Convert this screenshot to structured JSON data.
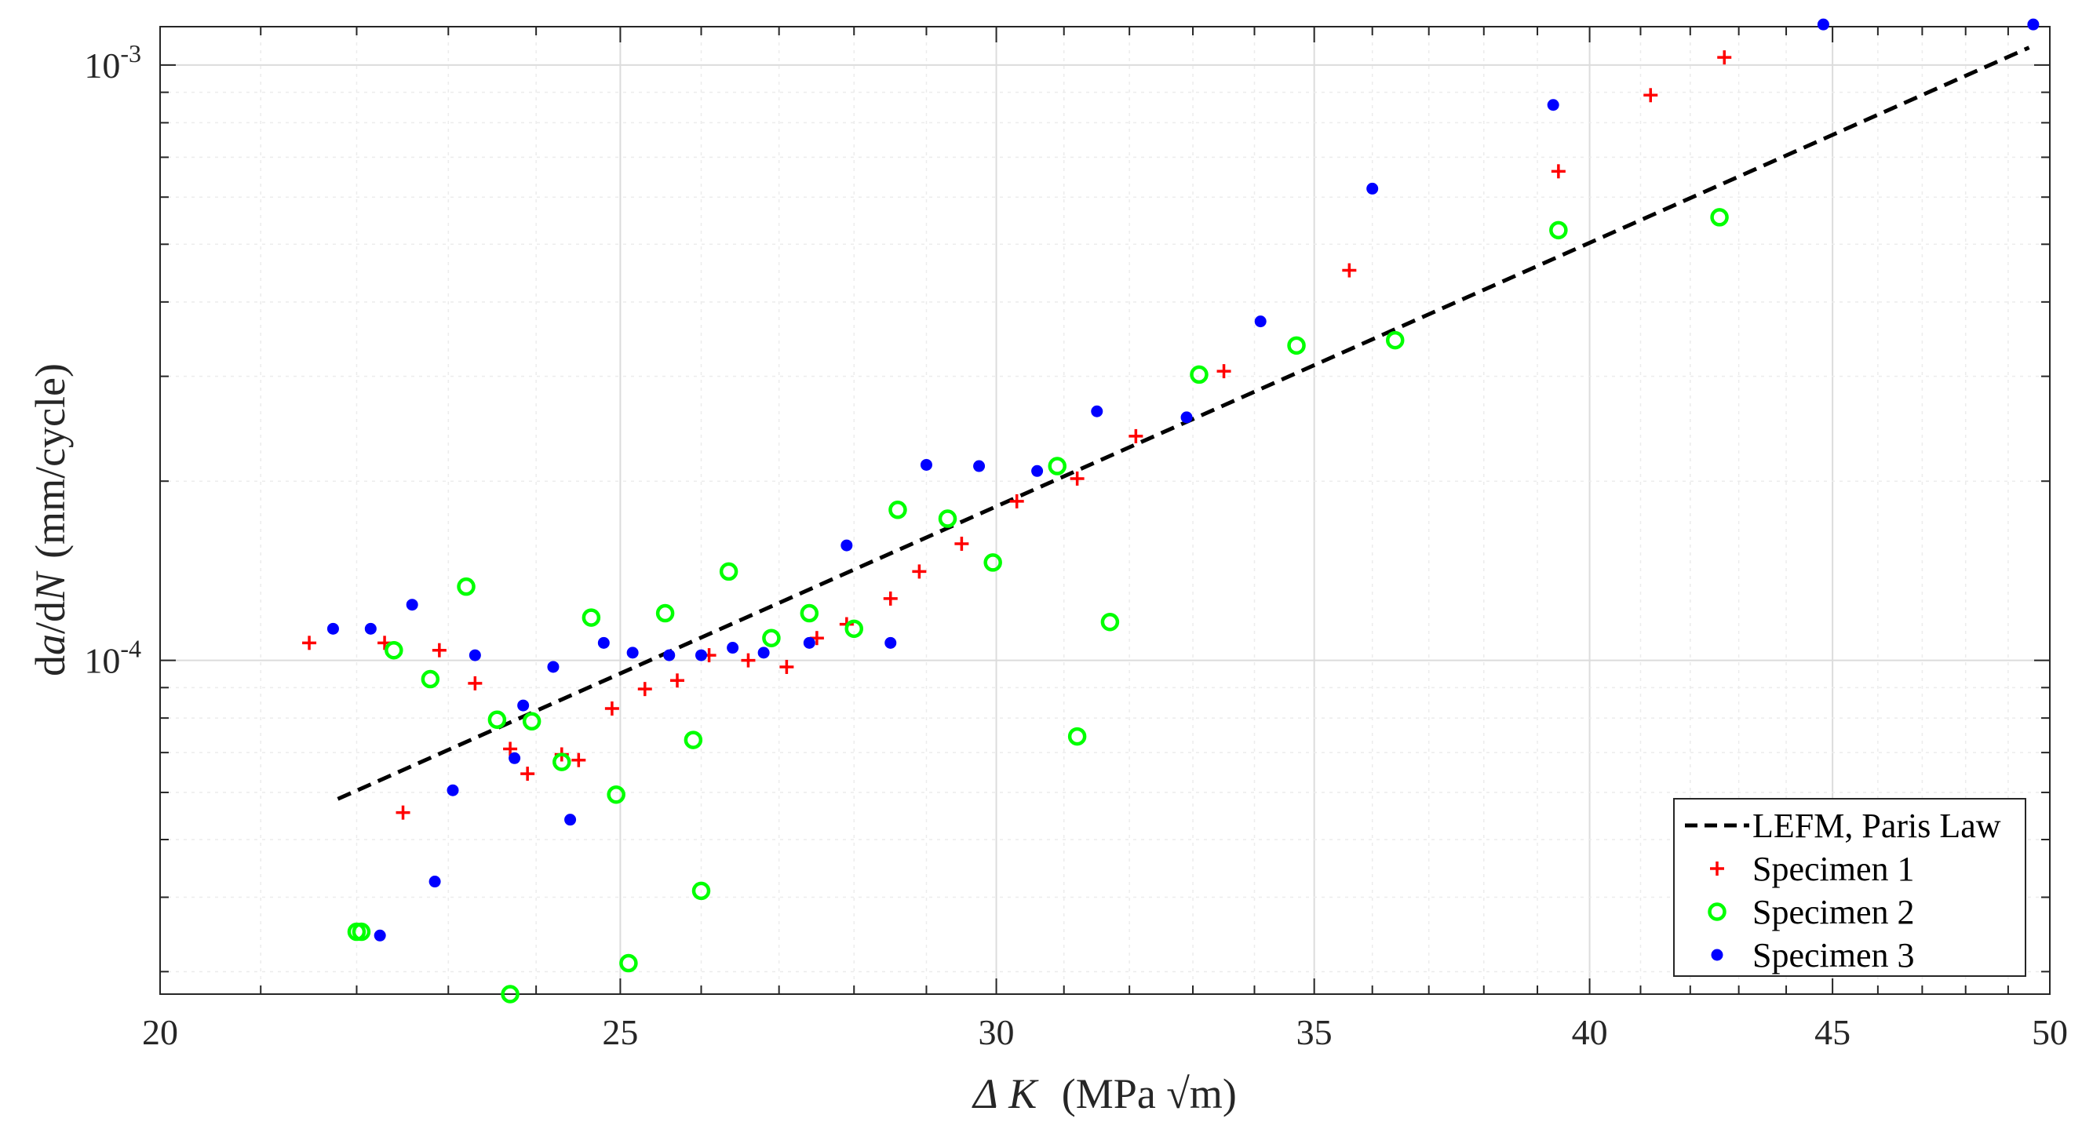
{
  "chart_data": {
    "type": "scatter",
    "title": "",
    "xscale": "log",
    "yscale": "log",
    "xlim": [
      20,
      50
    ],
    "ylim": [
      2.75e-05,
      0.00116
    ],
    "xticks": [
      20,
      25,
      30,
      35,
      40,
      45,
      50
    ],
    "xtick_labels": [
      "20",
      "25",
      "30",
      "35",
      "40",
      "45",
      "50"
    ],
    "yticks": [
      0.0001,
      0.001
    ],
    "ytick_labels": [
      {
        "base": "10",
        "exp": "-4"
      },
      {
        "base": "10",
        "exp": "-3"
      }
    ],
    "grid": true,
    "xlabel": {
      "delta": "Δ",
      "var": "K",
      "units": "(MPa √m)"
    },
    "ylabel": {
      "d1": "d",
      "a": "a",
      "slash": "/d",
      "n": "N",
      "units": "(mm/cycle)"
    },
    "legend_position": "bottom-right",
    "series": [
      {
        "name": "LEFM, Paris Law",
        "kind": "line",
        "style": "dashed",
        "color": "#000000",
        "x": [
          21.8,
          49.5
        ],
        "y": [
          5.85e-05,
          0.00107
        ]
      },
      {
        "name": "Specimen 1",
        "kind": "marker",
        "marker": "plus",
        "color": "#ff0000",
        "x": [
          21.5,
          22.3,
          22.5,
          22.9,
          23.3,
          23.7,
          23.9,
          24.3,
          24.5,
          24.9,
          25.3,
          25.7,
          26.1,
          26.6,
          27.1,
          27.5,
          27.9,
          28.5,
          28.9,
          29.5,
          30.3,
          31.2,
          32.1,
          33.5,
          35.6,
          39.4,
          41.2,
          42.7
        ],
        "y": [
          0.000107,
          0.000107,
          5.55e-05,
          0.000104,
          9.15e-05,
          7.1e-05,
          6.45e-05,
          6.95e-05,
          6.8e-05,
          8.3e-05,
          8.95e-05,
          9.25e-05,
          0.000102,
          0.0001,
          9.75e-05,
          0.000109,
          0.000115,
          0.000127,
          0.000141,
          0.000157,
          0.000185,
          0.000202,
          0.000238,
          0.000306,
          0.000452,
          0.000663,
          0.00089,
          0.00103
        ]
      },
      {
        "name": "Specimen 2",
        "kind": "marker",
        "marker": "circle",
        "color": "#00ff00",
        "x": [
          22.0,
          22.05,
          22.4,
          22.8,
          23.2,
          23.55,
          23.7,
          23.95,
          24.3,
          24.65,
          24.95,
          25.1,
          25.55,
          25.9,
          26.0,
          26.35,
          26.9,
          27.4,
          28.0,
          28.6,
          29.3,
          29.95,
          30.9,
          31.2,
          31.7,
          33.1,
          34.7,
          36.4,
          39.4,
          42.6
        ],
        "y": [
          3.5e-05,
          3.5e-05,
          0.000104,
          9.3e-05,
          0.000133,
          7.95e-05,
          2.75e-05,
          7.9e-05,
          6.75e-05,
          0.000118,
          5.95e-05,
          3.1e-05,
          0.00012,
          7.35e-05,
          4.1e-05,
          0.000141,
          0.000109,
          0.00012,
          0.000113,
          0.000179,
          0.000173,
          0.000146,
          0.000212,
          7.45e-05,
          0.000116,
          0.000302,
          0.000338,
          0.000345,
          0.000528,
          0.000555
        ]
      },
      {
        "name": "Specimen 3",
        "kind": "marker",
        "marker": "dot",
        "color": "#0000ff",
        "x": [
          21.75,
          22.15,
          22.25,
          22.6,
          22.85,
          23.05,
          23.3,
          23.75,
          23.85,
          24.2,
          24.4,
          24.8,
          25.15,
          25.6,
          26.0,
          26.4,
          26.8,
          27.4,
          27.9,
          28.5,
          29.0,
          29.75,
          30.6,
          31.5,
          32.9,
          34.1,
          36.0,
          39.3,
          44.8,
          49.6
        ],
        "y": [
          0.000113,
          0.000113,
          3.45e-05,
          0.000124,
          4.25e-05,
          6.05e-05,
          0.000102,
          6.85e-05,
          8.4e-05,
          9.75e-05,
          5.4e-05,
          0.000107,
          0.000103,
          0.000102,
          0.000102,
          0.000105,
          0.000103,
          0.000107,
          0.000156,
          0.000107,
          0.000213,
          0.000212,
          0.000208,
          0.000262,
          0.000256,
          0.000371,
          0.00062,
          0.000857,
          0.00117,
          0.00117
        ]
      }
    ]
  }
}
